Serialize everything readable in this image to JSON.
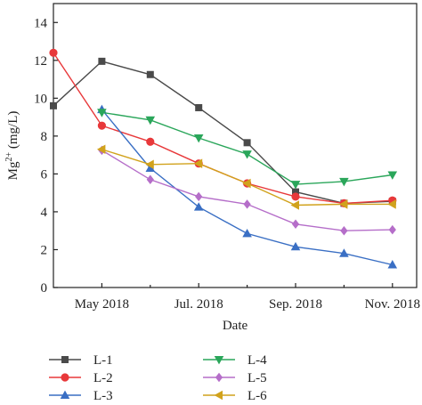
{
  "chart_data": {
    "type": "line",
    "title": "",
    "xlabel": "Date",
    "ylabel": {
      "base": "Mg",
      "sup": "2+",
      "rest": " (mg/L)"
    },
    "xlim": [
      0,
      7.5
    ],
    "ylim": [
      0,
      15
    ],
    "x_ticks": [
      {
        "x": 1,
        "label": "May 2018"
      },
      {
        "x": 3,
        "label": "Jul. 2018"
      },
      {
        "x": 5,
        "label": "Sep. 2018"
      },
      {
        "x": 7,
        "label": "Nov. 2018"
      }
    ],
    "y_ticks": [
      0,
      2,
      4,
      6,
      8,
      10,
      12,
      14
    ],
    "grid": false,
    "legend_position": "bottom",
    "series": [
      {
        "name": "L-1",
        "color": "#4a4a4a",
        "marker": "square",
        "x": [
          0,
          1,
          2,
          3,
          4,
          5,
          6,
          7
        ],
        "values": [
          9.6,
          11.95,
          11.25,
          9.5,
          7.65,
          5.05,
          4.45,
          4.55
        ]
      },
      {
        "name": "L-2",
        "color": "#e8383a",
        "marker": "circle",
        "x": [
          0,
          1,
          2,
          3,
          4,
          5,
          6,
          7
        ],
        "values": [
          12.4,
          8.55,
          7.7,
          6.55,
          5.5,
          4.8,
          4.45,
          4.6
        ]
      },
      {
        "name": "L-3",
        "color": "#3a6fc4",
        "marker": "triangle-up",
        "x": [
          1,
          2,
          3,
          4,
          5,
          6,
          7
        ],
        "values": [
          9.4,
          6.3,
          4.25,
          2.85,
          2.15,
          1.8,
          1.2
        ]
      },
      {
        "name": "L-4",
        "color": "#2aa65a",
        "marker": "triangle-down",
        "x": [
          1,
          2,
          3,
          4,
          5,
          6,
          7
        ],
        "values": [
          9.25,
          8.85,
          7.9,
          7.05,
          5.45,
          5.6,
          5.95
        ]
      },
      {
        "name": "L-5",
        "color": "#b56ec9",
        "marker": "diamond",
        "x": [
          1,
          2,
          3,
          4,
          5,
          6,
          7
        ],
        "values": [
          7.25,
          5.7,
          4.8,
          4.4,
          3.35,
          3.0,
          3.05
        ]
      },
      {
        "name": "L-6",
        "color": "#d1a21c",
        "marker": "triangle-left",
        "x": [
          1,
          2,
          3,
          4,
          5,
          6,
          7
        ],
        "values": [
          7.3,
          6.5,
          6.55,
          5.5,
          4.35,
          4.4,
          4.4
        ]
      }
    ]
  }
}
